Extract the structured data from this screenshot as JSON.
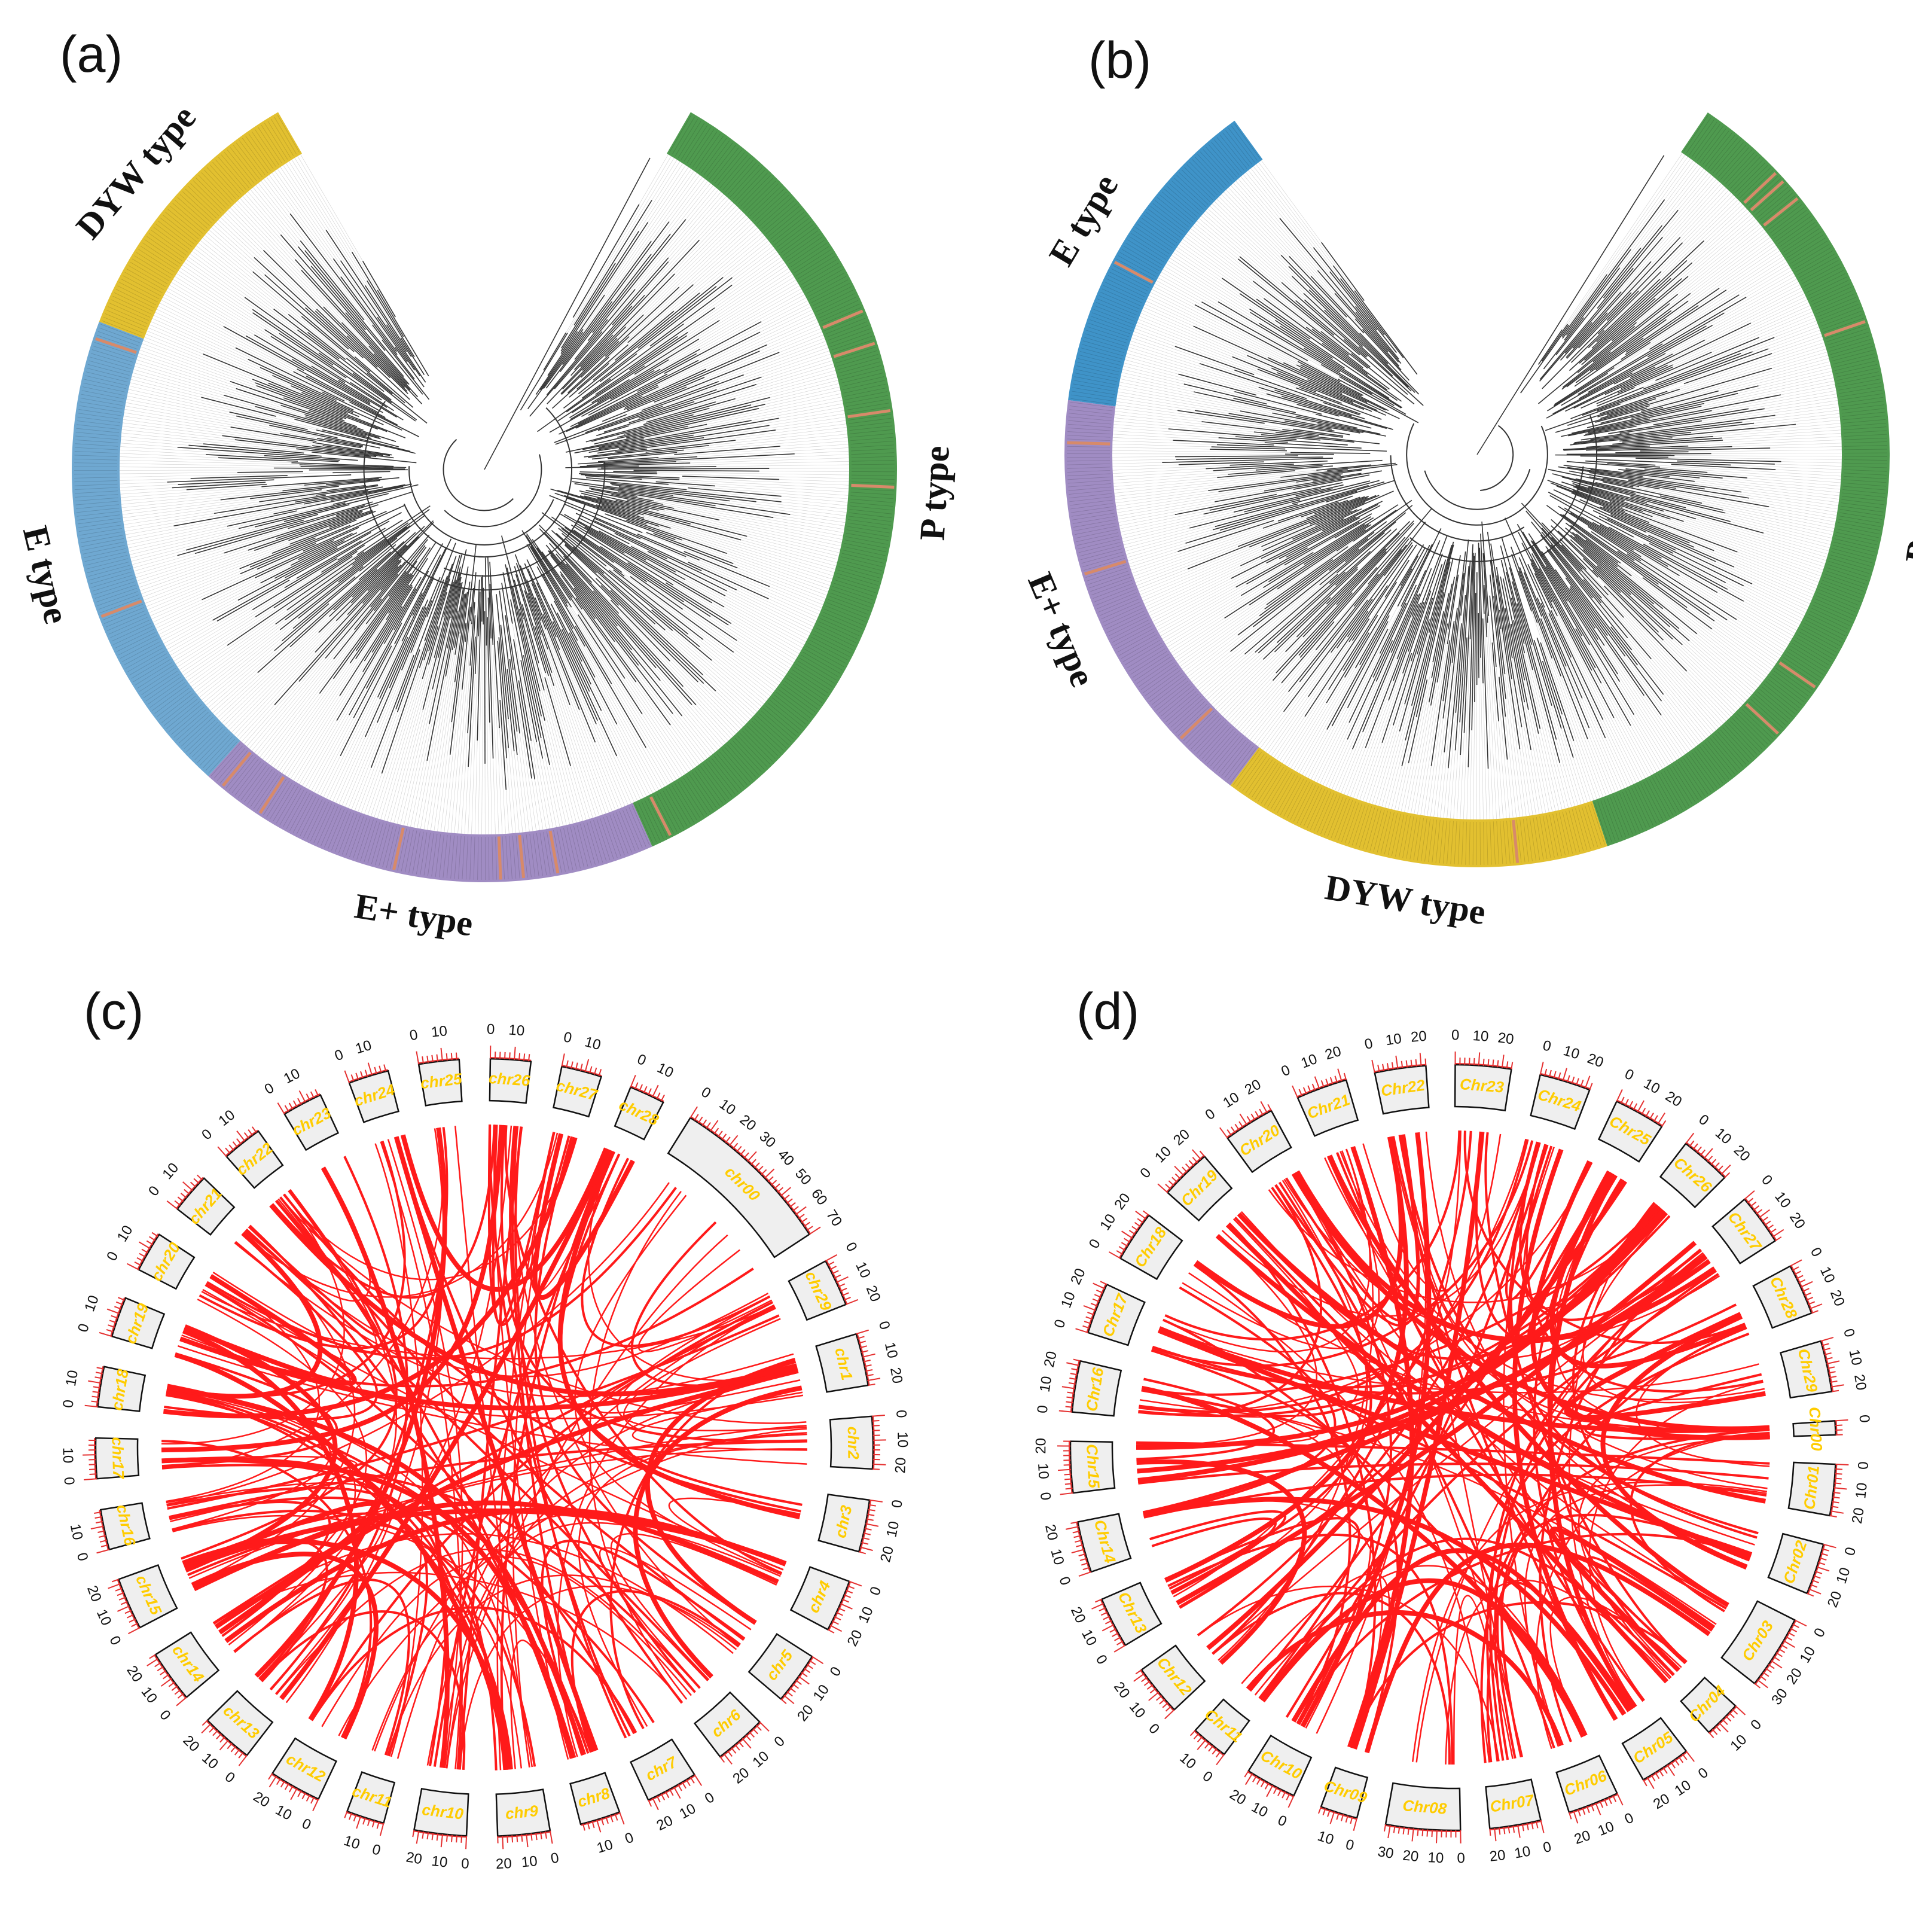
{
  "panels": [
    {
      "letter": "(a)",
      "kind": "tree",
      "clades": [
        {
          "label": "P type",
          "color": "#4f9a4f",
          "share": 0.42
        },
        {
          "label": "E+ type",
          "color": "#a08cc3",
          "share": 0.22
        },
        {
          "label": "E type",
          "color": "#6fa8d1",
          "share": 0.23
        },
        {
          "label": "DYW type",
          "color": "#e2c030",
          "share": 0.13
        }
      ]
    },
    {
      "letter": "(b)",
      "kind": "tree",
      "clades": [
        {
          "label": "P type",
          "color": "#4f9a4f",
          "share": 0.44
        },
        {
          "label": "DYW type",
          "color": "#e2c030",
          "share": 0.19
        },
        {
          "label": "E+ type",
          "color": "#a08cc3",
          "share": 0.21
        },
        {
          "label": "E type",
          "color": "#3f93c8",
          "share": 0.16
        }
      ]
    },
    {
      "letter": "(c)",
      "kind": "circos",
      "chromosomes": [
        {
          "name": "chr00",
          "ticks": [
            "0",
            "10",
            "20",
            "30",
            "40",
            "50",
            "60",
            "70"
          ],
          "size": 70
        },
        {
          "name": "chr29",
          "ticks": [
            "0",
            "10",
            "20"
          ],
          "size": 20
        },
        {
          "name": "chr1",
          "ticks": [
            "0",
            "10",
            "20"
          ],
          "size": 22
        },
        {
          "name": "chr2",
          "ticks": [
            "0",
            "10",
            "20"
          ],
          "size": 22
        },
        {
          "name": "chr3",
          "ticks": [
            "0",
            "10",
            "20"
          ],
          "size": 22
        },
        {
          "name": "chr4",
          "ticks": [
            "0",
            "10",
            "20"
          ],
          "size": 22
        },
        {
          "name": "chr5",
          "ticks": [
            "0",
            "10",
            "20"
          ],
          "size": 22
        },
        {
          "name": "chr6",
          "ticks": [
            "0",
            "10",
            "20"
          ],
          "size": 22
        },
        {
          "name": "chr7",
          "ticks": [
            "0",
            "10",
            "20"
          ],
          "size": 22
        },
        {
          "name": "chr8",
          "ticks": [
            "0",
            "10"
          ],
          "size": 17
        },
        {
          "name": "chr9",
          "ticks": [
            "0",
            "10",
            "20"
          ],
          "size": 22
        },
        {
          "name": "chr10",
          "ticks": [
            "0",
            "10",
            "20"
          ],
          "size": 22
        },
        {
          "name": "chr11",
          "ticks": [
            "0",
            "10"
          ],
          "size": 16
        },
        {
          "name": "chr12",
          "ticks": [
            "0",
            "10",
            "20"
          ],
          "size": 22
        },
        {
          "name": "chr13",
          "ticks": [
            "0",
            "10",
            "20"
          ],
          "size": 22
        },
        {
          "name": "chr14",
          "ticks": [
            "0",
            "10",
            "20"
          ],
          "size": 22
        },
        {
          "name": "chr15",
          "ticks": [
            "0",
            "10",
            "20"
          ],
          "size": 22
        },
        {
          "name": "chr16",
          "ticks": [
            "0",
            "10"
          ],
          "size": 17
        },
        {
          "name": "chr17",
          "ticks": [
            "0",
            "10"
          ],
          "size": 17
        },
        {
          "name": "chr18",
          "ticks": [
            "0",
            "10"
          ],
          "size": 17
        },
        {
          "name": "chr19",
          "ticks": [
            "0",
            "10"
          ],
          "size": 17
        },
        {
          "name": "chr20",
          "ticks": [
            "0",
            "10"
          ],
          "size": 17
        },
        {
          "name": "chr21",
          "ticks": [
            "0",
            "10"
          ],
          "size": 17
        },
        {
          "name": "chr22",
          "ticks": [
            "0",
            "10"
          ],
          "size": 17
        },
        {
          "name": "chr23",
          "ticks": [
            "0",
            "10"
          ],
          "size": 17
        },
        {
          "name": "chr24",
          "ticks": [
            "0",
            "10"
          ],
          "size": 17
        },
        {
          "name": "chr25",
          "ticks": [
            "0",
            "10"
          ],
          "size": 17
        },
        {
          "name": "chr26",
          "ticks": [
            "0",
            "10"
          ],
          "size": 17
        },
        {
          "name": "chr27",
          "ticks": [
            "0",
            "10"
          ],
          "size": 17
        },
        {
          "name": "chr28",
          "ticks": [
            "0",
            "10"
          ],
          "size": 15
        }
      ]
    },
    {
      "letter": "(d)",
      "kind": "circos",
      "chromosomes": [
        {
          "name": "Chr00",
          "ticks": [
            "0"
          ],
          "size": 6
        },
        {
          "name": "Chr01",
          "ticks": [
            "0",
            "10",
            "20"
          ],
          "size": 22
        },
        {
          "name": "Chr02",
          "ticks": [
            "0",
            "10",
            "20"
          ],
          "size": 22
        },
        {
          "name": "Chr03",
          "ticks": [
            "0",
            "10",
            "20",
            "30"
          ],
          "size": 32
        },
        {
          "name": "Chr04",
          "ticks": [
            "0",
            "10"
          ],
          "size": 16
        },
        {
          "name": "Chr05",
          "ticks": [
            "0",
            "10",
            "20"
          ],
          "size": 22
        },
        {
          "name": "Chr06",
          "ticks": [
            "0",
            "10",
            "20"
          ],
          "size": 22
        },
        {
          "name": "Chr07",
          "ticks": [
            "0",
            "10",
            "20"
          ],
          "size": 22
        },
        {
          "name": "Chr08",
          "ticks": [
            "0",
            "10",
            "20",
            "30"
          ],
          "size": 32
        },
        {
          "name": "Chr09",
          "ticks": [
            "0",
            "10"
          ],
          "size": 16
        },
        {
          "name": "Chr10",
          "ticks": [
            "0",
            "10",
            "20"
          ],
          "size": 22
        },
        {
          "name": "Chr11",
          "ticks": [
            "0",
            "10"
          ],
          "size": 16
        },
        {
          "name": "Chr12",
          "ticks": [
            "0",
            "10",
            "20"
          ],
          "size": 22
        },
        {
          "name": "Chr13",
          "ticks": [
            "0",
            "10",
            "20"
          ],
          "size": 22
        },
        {
          "name": "Chr14",
          "ticks": [
            "0",
            "10",
            "20"
          ],
          "size": 22
        },
        {
          "name": "Chr15",
          "ticks": [
            "0",
            "10",
            "20"
          ],
          "size": 22
        },
        {
          "name": "Chr16",
          "ticks": [
            "0",
            "10",
            "20"
          ],
          "size": 22
        },
        {
          "name": "Chr17",
          "ticks": [
            "0",
            "10",
            "20"
          ],
          "size": 22
        },
        {
          "name": "Chr18",
          "ticks": [
            "0",
            "10",
            "20"
          ],
          "size": 22
        },
        {
          "name": "Chr19",
          "ticks": [
            "0",
            "10",
            "20"
          ],
          "size": 22
        },
        {
          "name": "Chr20",
          "ticks": [
            "0",
            "10",
            "20"
          ],
          "size": 22
        },
        {
          "name": "Chr21",
          "ticks": [
            "0",
            "10",
            "20"
          ],
          "size": 22
        },
        {
          "name": "Chr22",
          "ticks": [
            "0",
            "10",
            "20"
          ],
          "size": 22
        },
        {
          "name": "Chr23",
          "ticks": [
            "0",
            "10",
            "20"
          ],
          "size": 24
        },
        {
          "name": "Chr24",
          "ticks": [
            "0",
            "10",
            "20"
          ],
          "size": 22
        },
        {
          "name": "Chr25",
          "ticks": [
            "0",
            "10",
            "20"
          ],
          "size": 22
        },
        {
          "name": "Chr26",
          "ticks": [
            "0",
            "10",
            "20"
          ],
          "size": 22
        },
        {
          "name": "Chr27",
          "ticks": [
            "0",
            "10",
            "20"
          ],
          "size": 22
        },
        {
          "name": "Chr28",
          "ticks": [
            "0",
            "10",
            "20"
          ],
          "size": 22
        },
        {
          "name": "Chr29",
          "ticks": [
            "0",
            "10",
            "20"
          ],
          "size": 22
        }
      ]
    }
  ],
  "colors": {
    "link": "#ff1a1a",
    "tick": "#e53030",
    "chr_fill": "#efefef",
    "chr_label": "#ffcc00",
    "branch": "#333333"
  }
}
